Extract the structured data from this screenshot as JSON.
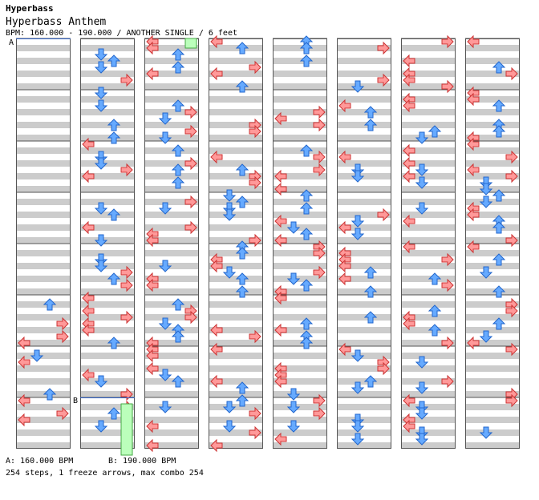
{
  "header": {
    "series": "Hyperbass",
    "title": "Hyperbass Anthem",
    "info": "BPM: 160.000 - 190.000 / ANOTHER SINGLE / 6 feet"
  },
  "markers": {
    "a": "A",
    "b": "B"
  },
  "footer": {
    "bpm_a": "A: 160.000 BPM",
    "bpm_b": "B: 190.000 BPM",
    "summary": "254 steps, 1 freeze arrows, max combo 254"
  },
  "colors": {
    "band": "#cccccc",
    "red_arrow": "#ff9999",
    "blue_arrow": "#66aaff",
    "freeze": "#bbffbb",
    "border": "#555555"
  },
  "step_columns": [
    [
      "",
      "",
      "",
      "",
      "",
      "",
      "",
      "",
      "",
      "",
      "",
      "",
      "",
      "",
      "",
      "",
      "",
      "",
      "",
      "",
      "",
      "",
      "",
      "",
      "",
      "",
      "",
      "",
      "",
      "",
      "",
      "",
      "",
      "",
      "",
      "",
      "",
      "",
      "",
      "",
      "",
      "",
      "",
      "",
      "",
      "",
      "",
      "",
      "L",
      "L",
      "",
      "",
      "",
      "",
      "",
      "",
      "",
      "",
      "",
      "",
      "",
      "",
      "",
      "",
      "",
      "",
      "",
      "",
      "",
      "R",
      "R",
      "",
      "",
      "",
      "",
      "",
      "",
      "",
      "",
      "",
      "",
      "",
      "",
      "",
      "",
      "",
      "",
      "",
      "",
      "",
      "",
      "",
      "",
      "",
      "",
      "",
      "",
      "R",
      "L",
      "R",
      "U",
      "U",
      "D",
      "",
      ""
    ],
    [
      "R",
      "L",
      "",
      "",
      "",
      "",
      "",
      "",
      "",
      "",
      "",
      "",
      "",
      "",
      "",
      "",
      "",
      "",
      "",
      "",
      "",
      "",
      "",
      "",
      "",
      "",
      "",
      "",
      "",
      "",
      "",
      "",
      "",
      "",
      "",
      "",
      "",
      "",
      "",
      "",
      "",
      "",
      "",
      "",
      "",
      "",
      "",
      "",
      "",
      "",
      "",
      "",
      "",
      "",
      "",
      "",
      "",
      "",
      "",
      "",
      "",
      "",
      "",
      "",
      "",
      "",
      "",
      "",
      "",
      "",
      "",
      "",
      "",
      "",
      "",
      "",
      "",
      "",
      "",
      "",
      "",
      "",
      "",
      "",
      "",
      "",
      "",
      "",
      "",
      "",
      "",
      "",
      "",
      "",
      "",
      "",
      "",
      "",
      "",
      "",
      "",
      "",
      ""
    ]
  ],
  "chart_data": {
    "type": "step-chart",
    "columns": 8,
    "measures_per_column": 8,
    "rows_per_measure": 8,
    "lanes": [
      "L",
      "D",
      "U",
      "R"
    ]
  }
}
